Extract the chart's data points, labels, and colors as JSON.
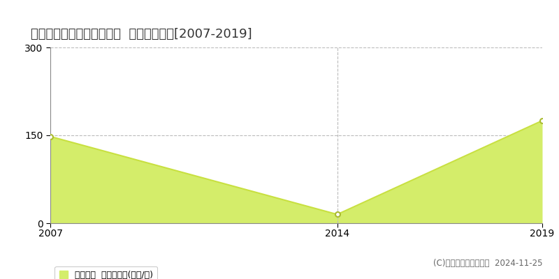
{
  "title": "京都市右京区西京極北裏町  住宅価格推移[2007-2019]",
  "years": [
    2007,
    2014,
    2019
  ],
  "values": [
    148,
    15,
    175
  ],
  "line_color": "#c8e040",
  "fill_color": "#d4ed6a",
  "fill_alpha": 1.0,
  "marker_color": "#ffffff",
  "marker_edge_color": "#aabb30",
  "ylim": [
    0,
    300
  ],
  "yticks": [
    0,
    150,
    300
  ],
  "xticks": [
    2007,
    2014,
    2019
  ],
  "grid_color": "#bbbbbb",
  "background_color": "#ffffff",
  "legend_label": "住宅価格  平均坪単価(万円/坪)",
  "copyright_text": "(C)土地価格ドットコム  2024-11-25",
  "title_fontsize": 13,
  "tick_fontsize": 10,
  "legend_fontsize": 9,
  "copyright_fontsize": 8.5
}
